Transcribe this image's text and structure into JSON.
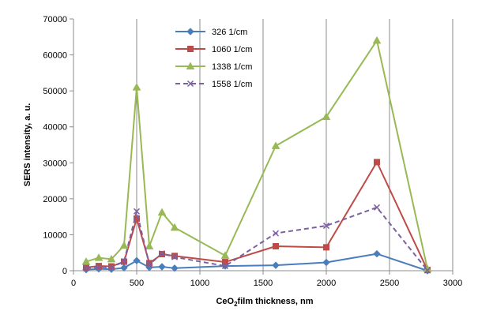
{
  "chart_data": {
    "type": "line",
    "xlabel": {
      "main": "CeO",
      "sub": "2",
      "rest": "film thickness, nm"
    },
    "ylabel": "SERS intensity,  a. u.",
    "xlim": [
      0,
      3000
    ],
    "ylim": [
      0,
      70000
    ],
    "x_ticks": [
      0,
      500,
      1000,
      1500,
      2000,
      2500,
      3000
    ],
    "y_ticks": [
      0,
      10000,
      20000,
      30000,
      40000,
      50000,
      60000,
      70000
    ],
    "grid": "vertical",
    "legend_position": "top-center",
    "series": [
      {
        "name": "326  1/cm",
        "color": "#4a7ebb",
        "marker": "diamond",
        "dash": "solid",
        "x": [
          100,
          200,
          300,
          400,
          500,
          600,
          700,
          800,
          1200,
          1600,
          2000,
          2400,
          2800
        ],
        "y": [
          300,
          500,
          400,
          800,
          2800,
          900,
          1100,
          700,
          1300,
          1500,
          2300,
          4700,
          0
        ]
      },
      {
        "name": "1060  1/cm",
        "color": "#be4b48",
        "marker": "square",
        "dash": "solid",
        "x": [
          100,
          200,
          300,
          400,
          500,
          600,
          700,
          800,
          1200,
          1600,
          2000,
          2400,
          2800
        ],
        "y": [
          900,
          1300,
          1200,
          2500,
          14500,
          2100,
          4600,
          4100,
          2400,
          6800,
          6500,
          30200,
          200
        ]
      },
      {
        "name": "1338  1/cm",
        "color": "#98b954",
        "marker": "triangle",
        "dash": "solid",
        "x": [
          100,
          200,
          300,
          400,
          500,
          600,
          700,
          800,
          1200,
          1600,
          2000,
          2400,
          2800
        ],
        "y": [
          2500,
          3600,
          3200,
          7000,
          51000,
          6800,
          16200,
          12000,
          4200,
          34700,
          42800,
          64000,
          500
        ]
      },
      {
        "name": "1558  1/cm",
        "color": "#7d60a0",
        "marker": "x",
        "dash": "dashed",
        "x": [
          100,
          200,
          300,
          400,
          500,
          600,
          700,
          800,
          1200,
          1600,
          2000,
          2400,
          2800
        ],
        "y": [
          700,
          1000,
          900,
          2600,
          16500,
          1700,
          4800,
          3800,
          1300,
          10400,
          12500,
          17600,
          100
        ]
      }
    ]
  }
}
